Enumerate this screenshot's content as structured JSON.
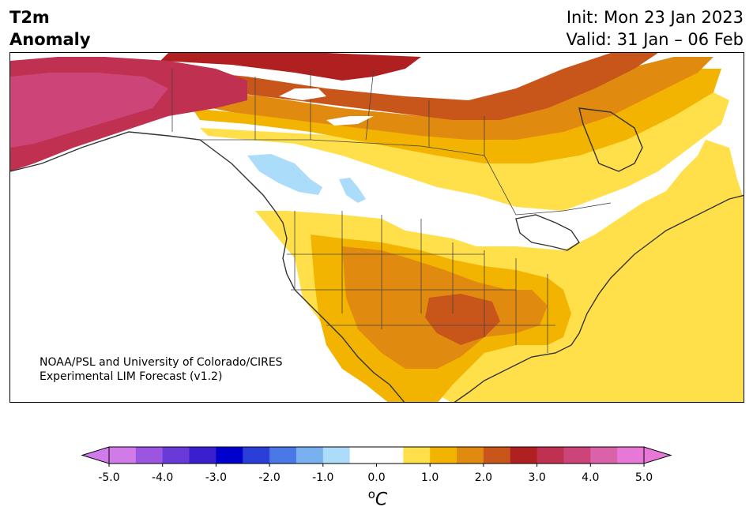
{
  "title": {
    "left_line1": "T2m",
    "left_line2": "Anomaly",
    "right_line1": "Init: Mon 23 Jan 2023",
    "right_line2": "Valid: 31 Jan – 06 Feb"
  },
  "credit": {
    "line1": "NOAA/PSL and University of Colorado/CIRES",
    "line2": "Experimental LIM Forecast (v1.2)"
  },
  "colorbar": {
    "units": "°C",
    "units_prefix": "o",
    "units_letter": "C",
    "ticks": [
      "-5.0",
      "-4.0",
      "-3.0",
      "-2.0",
      "-1.0",
      "0.0",
      "1.0",
      "2.0",
      "3.0",
      "4.0",
      "5.0"
    ],
    "tick_values": [
      -5,
      -4,
      -3,
      -2,
      -1,
      0,
      1,
      2,
      3,
      4,
      5
    ],
    "levels": [
      -5.0,
      -4.5,
      -4.0,
      -3.5,
      -3.0,
      -2.5,
      -2.0,
      -1.5,
      -1.0,
      -0.5,
      0.5,
      1.0,
      1.5,
      2.0,
      2.5,
      3.0,
      3.5,
      4.0,
      4.5,
      5.0
    ],
    "colors": [
      "#d07be8",
      "#9b55e0",
      "#6a3ad8",
      "#3a1fcf",
      "#0000cc",
      "#2a3ed8",
      "#4a78e6",
      "#78b0f0",
      "#abdcfa",
      "#ffffff",
      "#ffffff",
      "#ffe04a",
      "#f2b400",
      "#e08a10",
      "#c8561a",
      "#b02020",
      "#c03050",
      "#cc4478",
      "#d962a8",
      "#e878d8"
    ],
    "under_color": "#d07be8",
    "over_color": "#e878d8"
  },
  "legend_colors": {
    "warm_1": "#ffe04a",
    "warm_2": "#f2b400",
    "warm_3": "#e08a10",
    "warm_4": "#c8561a",
    "warm_5": "#b02020",
    "warm_6": "#c03050",
    "warm_7": "#cc4478",
    "cool_1": "#abdcfa",
    "land_outline": "#333333"
  }
}
